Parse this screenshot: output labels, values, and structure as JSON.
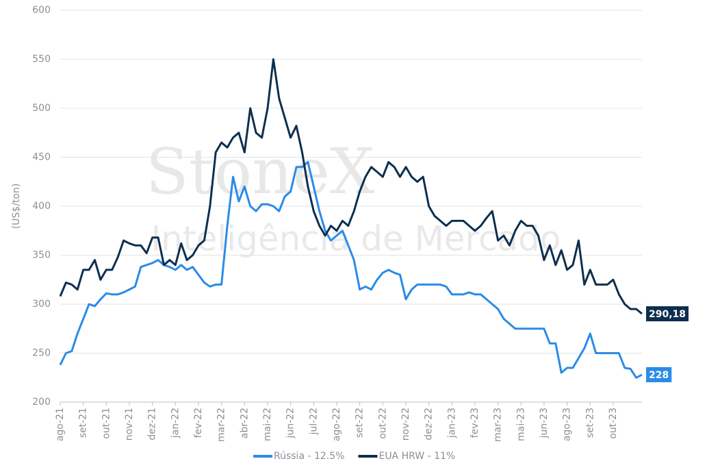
{
  "chart_data": {
    "type": "line",
    "y_label": "(US$/ton)",
    "watermark": [
      "StoneX",
      "Inteligência de Mercado"
    ],
    "categories": [
      "ago-21",
      null,
      null,
      null,
      "set-21",
      null,
      null,
      null,
      "out-21",
      null,
      null,
      null,
      "nov-21",
      null,
      null,
      null,
      "dez-21",
      null,
      null,
      null,
      "jan-22",
      null,
      null,
      null,
      "fev-22",
      null,
      null,
      null,
      "mar-22",
      null,
      null,
      null,
      "abr-22",
      null,
      null,
      null,
      "mai-22",
      null,
      null,
      null,
      "jun-22",
      null,
      null,
      null,
      "jul-22",
      null,
      null,
      null,
      "ago-22",
      null,
      null,
      null,
      "set-22",
      null,
      null,
      null,
      "out-22",
      null,
      null,
      null,
      "nov-22",
      null,
      null,
      null,
      "dez-22",
      null,
      null,
      null,
      "jan-23",
      null,
      null,
      null,
      "fev-23",
      null,
      null,
      null,
      "mar-23",
      null,
      null,
      null,
      "mai-23",
      null,
      null,
      null,
      "jun-23",
      null,
      null,
      null,
      "ago-23",
      null,
      null,
      null,
      "set-23",
      null,
      null,
      null,
      "out-23",
      null,
      null,
      null,
      null,
      null
    ],
    "ylim": [
      200,
      600
    ],
    "yticks": [
      200,
      250,
      300,
      350,
      400,
      450,
      500,
      550,
      600
    ],
    "grid": true,
    "legend": "bottom",
    "series": [
      {
        "name": "Rússia - 12.5%",
        "color": "#2a8be8",
        "values": [
          238,
          250,
          252,
          270,
          285,
          300,
          298,
          305,
          311,
          310,
          310,
          312,
          315,
          318,
          338,
          340,
          342,
          345,
          340,
          338,
          335,
          340,
          335,
          338,
          330,
          322,
          318,
          320,
          320,
          380,
          430,
          405,
          420,
          400,
          395,
          402,
          402,
          400,
          395,
          410,
          415,
          440,
          440,
          445,
          420,
          395,
          375,
          365,
          370,
          375,
          360,
          345,
          315,
          318,
          315,
          325,
          332,
          335,
          332,
          330,
          305,
          315,
          320,
          320,
          320,
          320,
          320,
          318,
          310,
          310,
          310,
          312,
          310,
          310,
          305,
          300,
          295,
          285,
          280,
          275,
          275,
          275,
          275,
          275,
          275,
          260,
          260,
          230,
          235,
          235,
          245,
          255,
          270,
          250,
          250,
          250,
          250,
          250,
          235,
          234,
          225,
          228
        ],
        "value_labels": [
          null,
          null,
          null,
          null,
          null,
          null,
          null,
          null,
          null,
          null,
          null,
          null,
          null,
          null,
          null,
          null,
          null,
          null,
          null,
          null,
          null,
          null,
          null,
          null,
          null,
          null,
          null,
          null,
          null,
          null,
          null,
          null,
          null,
          null,
          null,
          null,
          null,
          null,
          null,
          null,
          null,
          null,
          null,
          null,
          null,
          null,
          null,
          null,
          null,
          null,
          null,
          null,
          null,
          null,
          null,
          null,
          null,
          null,
          null,
          null,
          null,
          null,
          null,
          null,
          null,
          null,
          null,
          null,
          null,
          null,
          null,
          null,
          null,
          null,
          null,
          null,
          null,
          null,
          null,
          null,
          null,
          null,
          null,
          null,
          null,
          null,
          null,
          null,
          null,
          null,
          null,
          null,
          null,
          null,
          null,
          null,
          null,
          null,
          null,
          null,
          null,
          "228"
        ]
      },
      {
        "name": "EUA HRW - 11%",
        "color": "#0d2f4f",
        "values": [
          308,
          322,
          320,
          315,
          335,
          335,
          345,
          325,
          335,
          335,
          348,
          365,
          362,
          360,
          360,
          352,
          368,
          368,
          340,
          345,
          340,
          362,
          345,
          350,
          360,
          365,
          400,
          455,
          465,
          460,
          470,
          475,
          455,
          500,
          475,
          470,
          500,
          550,
          510,
          490,
          470,
          482,
          455,
          420,
          395,
          380,
          370,
          380,
          375,
          385,
          380,
          395,
          415,
          430,
          440,
          435,
          430,
          445,
          440,
          430,
          440,
          430,
          425,
          430,
          400,
          390,
          385,
          380,
          385,
          385,
          385,
          380,
          375,
          380,
          388,
          395,
          365,
          370,
          360,
          375,
          385,
          380,
          380,
          370,
          345,
          360,
          340,
          355,
          335,
          340,
          365,
          320,
          335,
          320,
          320,
          320,
          325,
          310,
          300,
          295,
          295,
          290.18
        ],
        "value_labels": [
          null,
          null,
          null,
          null,
          null,
          null,
          null,
          null,
          null,
          null,
          null,
          null,
          null,
          null,
          null,
          null,
          null,
          null,
          null,
          null,
          null,
          null,
          null,
          null,
          null,
          null,
          null,
          null,
          null,
          null,
          null,
          null,
          null,
          null,
          null,
          null,
          null,
          null,
          null,
          null,
          null,
          null,
          null,
          null,
          null,
          null,
          null,
          null,
          null,
          null,
          null,
          null,
          null,
          null,
          null,
          null,
          null,
          null,
          null,
          null,
          null,
          null,
          null,
          null,
          null,
          null,
          null,
          null,
          null,
          null,
          null,
          null,
          null,
          null,
          null,
          null,
          null,
          null,
          null,
          null,
          null,
          null,
          null,
          null,
          null,
          null,
          null,
          null,
          null,
          null,
          null,
          null,
          null,
          null,
          null,
          null,
          null,
          null,
          null,
          null,
          null,
          "290,18"
        ]
      }
    ]
  }
}
